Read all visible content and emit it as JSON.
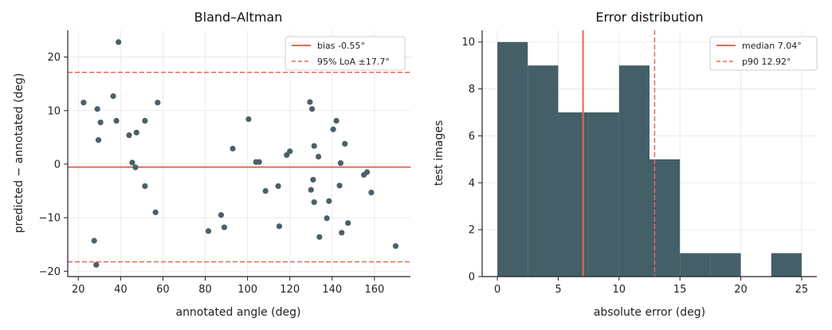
{
  "colors": {
    "point": "#4a6068",
    "bar": "#445f68",
    "accent": "#e06b55",
    "grid": "#e6e6e6"
  },
  "chart_data": [
    {
      "type": "scatter",
      "title": "Bland–Altman",
      "xlabel": "annotated angle (deg)",
      "ylabel": "predicted − annotated (deg)",
      "xlim": [
        15,
        177
      ],
      "ylim": [
        -21,
        25
      ],
      "xticks": [
        20,
        40,
        60,
        80,
        100,
        120,
        140,
        160
      ],
      "yticks": [
        -20,
        -10,
        0,
        10,
        20
      ],
      "grid": true,
      "legend": {
        "placement": "top-right",
        "entries": [
          "bias -0.55°",
          "95% LoA ±17.7°"
        ]
      },
      "bias": -0.55,
      "loa_upper": 17.15,
      "loa_lower": -18.25,
      "points": [
        [
          22.5,
          11.5
        ],
        [
          27.5,
          -14.3
        ],
        [
          28.5,
          -18.8
        ],
        [
          29,
          10.3
        ],
        [
          29.5,
          4.5
        ],
        [
          30.5,
          7.8
        ],
        [
          36.5,
          12.7
        ],
        [
          38,
          8.1
        ],
        [
          39,
          22.8
        ],
        [
          44,
          5.4
        ],
        [
          45.5,
          0.3
        ],
        [
          47,
          -0.6
        ],
        [
          47.5,
          5.9
        ],
        [
          51.5,
          8.1
        ],
        [
          51.5,
          -4.1
        ],
        [
          56.5,
          -9.0
        ],
        [
          57.5,
          11.5
        ],
        [
          81.5,
          -12.5
        ],
        [
          87.5,
          -9.5
        ],
        [
          89,
          -11.8
        ],
        [
          93,
          2.9
        ],
        [
          100.5,
          8.4
        ],
        [
          104,
          0.4
        ],
        [
          105.5,
          0.4
        ],
        [
          108.5,
          -5.0
        ],
        [
          114.5,
          -4.1
        ],
        [
          115,
          -11.6
        ],
        [
          118.5,
          1.7
        ],
        [
          120,
          2.4
        ],
        [
          129.5,
          11.6
        ],
        [
          130,
          -4.8
        ],
        [
          130.5,
          10.3
        ],
        [
          131,
          -2.9
        ],
        [
          131.5,
          3.4
        ],
        [
          131.5,
          -7.1
        ],
        [
          133.5,
          1.4
        ],
        [
          134,
          -13.6
        ],
        [
          137.5,
          -10.1
        ],
        [
          138.5,
          -6.9
        ],
        [
          140.5,
          6.5
        ],
        [
          142,
          8.1
        ],
        [
          143.5,
          -4.0
        ],
        [
          144,
          0.2
        ],
        [
          144.5,
          -12.8
        ],
        [
          146,
          3.8
        ],
        [
          147.5,
          -11.0
        ],
        [
          155,
          -2.0
        ],
        [
          156.5,
          -1.5
        ],
        [
          158.5,
          -5.3
        ],
        [
          170,
          -15.3
        ]
      ]
    },
    {
      "type": "histogram",
      "title": "Error distribution",
      "xlabel": "absolute error (deg)",
      "ylabel": "test images",
      "xlim": [
        -1.25,
        26.25
      ],
      "ylim": [
        0,
        10.5
      ],
      "xticks": [
        0,
        5,
        10,
        15,
        20,
        25
      ],
      "yticks": [
        0,
        2,
        4,
        6,
        8,
        10
      ],
      "grid": true,
      "legend": {
        "placement": "top-right",
        "entries": [
          "median 7.04°",
          "p90 12.92°"
        ]
      },
      "bin_edges": [
        0,
        2.5,
        5,
        7.5,
        10,
        12.5,
        15,
        17.5,
        20,
        22.5,
        25
      ],
      "counts": [
        10,
        9,
        7,
        7,
        9,
        5,
        1,
        1,
        0,
        1
      ],
      "median": 7.04,
      "p90": 12.92
    }
  ]
}
